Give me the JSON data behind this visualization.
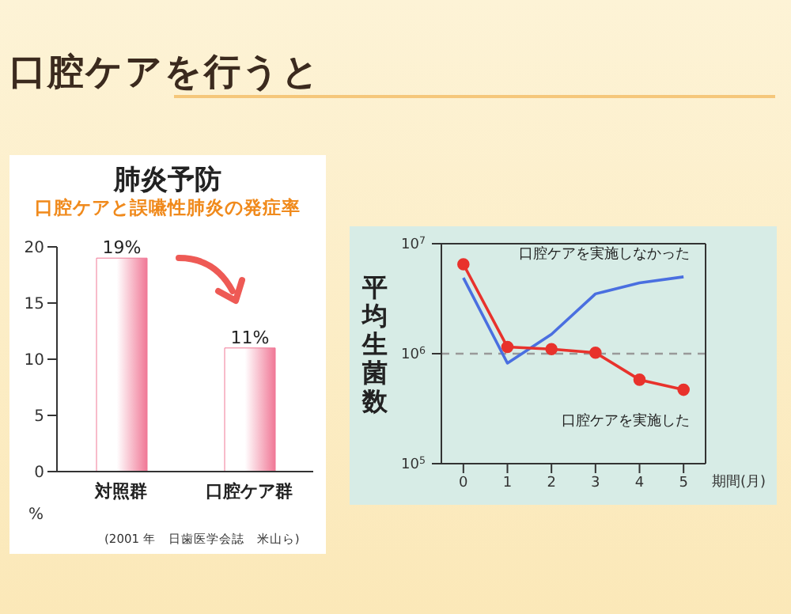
{
  "chart_data": [
    {
      "type": "bar",
      "title": "肺炎予防",
      "subtitle": "口腔ケアと誤嚥性肺炎の発症率",
      "ylabel": "%",
      "categories": [
        "対照群",
        "口腔ケア群"
      ],
      "values": [
        19,
        11
      ],
      "value_labels": [
        "19%",
        "11%"
      ],
      "color": "#f07896",
      "ylim": [
        0,
        20
      ],
      "yticks": [
        0,
        5,
        10,
        15,
        20
      ],
      "legend": false,
      "annotations": [
        "口腔ケアを行うと",
        "(2001 年　日歯医学会誌　米山ら)"
      ]
    },
    {
      "type": "line",
      "ylabel": "平均生菌数",
      "xlabel": "期間(月)",
      "x": [
        0,
        1,
        2,
        3,
        4,
        5
      ],
      "log": true,
      "xlim": [
        -0.5,
        5.5
      ],
      "xticks": [
        0,
        1,
        2,
        3,
        4,
        5
      ],
      "ylim": [
        100000,
        10000000
      ],
      "yticks": [
        {
          "value": 100000,
          "label": "10$^{5}$"
        },
        {
          "value": 1000000,
          "label": "10$^{6}$"
        },
        {
          "value": 10000000,
          "label": "10$^{7}$"
        }
      ],
      "series": [
        {
          "name": "口腔ケアを実施しなかった",
          "color": "#4a6fe0",
          "marker": "none",
          "values": [
            4900000,
            820000,
            1500000,
            3500000,
            4400000,
            5000000
          ]
        },
        {
          "name": "口腔ケアを実施した",
          "color": "#e8322c",
          "marker": "circle",
          "values": [
            6500000,
            1150000,
            1100000,
            1020000,
            580000,
            470000
          ]
        }
      ],
      "ref_lines": [
        {
          "axis": "y",
          "value": 1000000,
          "color": "#999999",
          "line_style": "dashed"
        }
      ],
      "legend": false
    }
  ]
}
